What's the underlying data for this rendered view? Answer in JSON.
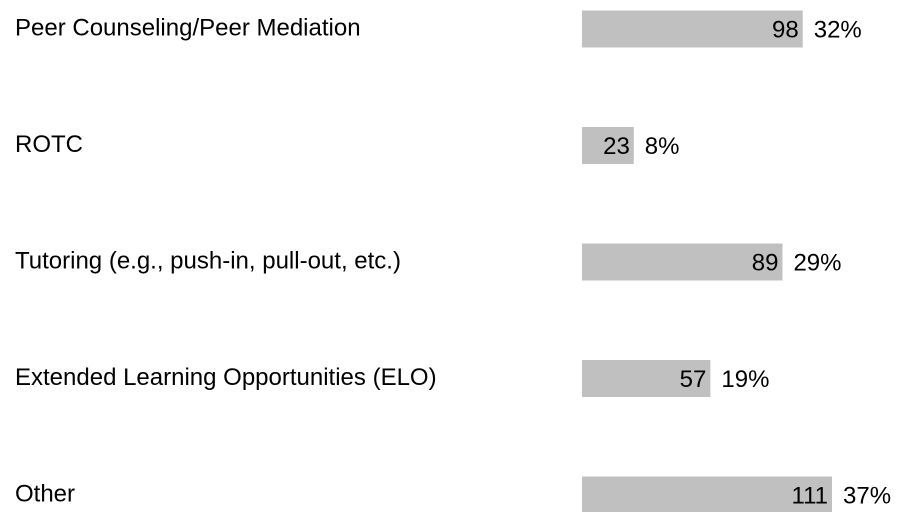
{
  "chart_data": {
    "type": "bar",
    "orientation": "horizontal",
    "categories": [
      "Peer Counseling/Peer Mediation",
      "ROTC",
      "Tutoring (e.g., push-in, pull-out, etc.)",
      "Extended Learning Opportunities (ELO)",
      "Other"
    ],
    "values": [
      98,
      23,
      89,
      57,
      111
    ],
    "percentages": [
      32,
      8,
      29,
      19,
      37
    ],
    "percentage_labels": [
      "32%",
      "8%",
      "29%",
      "19%",
      "37%"
    ],
    "color": "#c0c0c0"
  }
}
